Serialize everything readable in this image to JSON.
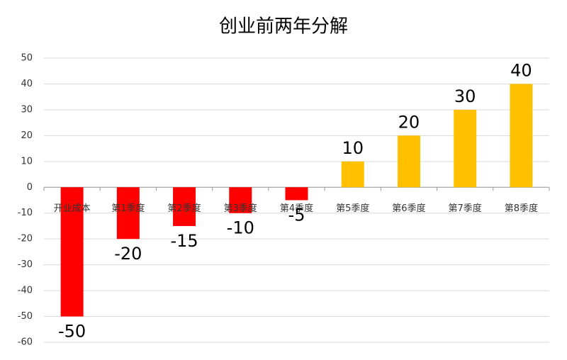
{
  "chart_data": {
    "type": "bar",
    "title": "创业前两年分解",
    "categories": [
      "开业成本",
      "第1季度",
      "第2季度",
      "第3季度",
      "第4季度",
      "第5季度",
      "第6季度",
      "第7季度",
      "第8季度"
    ],
    "values": [
      -50,
      -20,
      -15,
      -10,
      -5,
      10,
      20,
      30,
      40
    ],
    "colors": [
      "#ff0000",
      "#ff0000",
      "#ff0000",
      "#ff0000",
      "#ff0000",
      "#ffc000",
      "#ffc000",
      "#ffc000",
      "#ffc000"
    ],
    "ylim": [
      -60,
      50
    ],
    "yticks": [
      -60,
      -50,
      -40,
      -30,
      -20,
      -10,
      0,
      10,
      20,
      30,
      40,
      50
    ],
    "grid": true
  }
}
